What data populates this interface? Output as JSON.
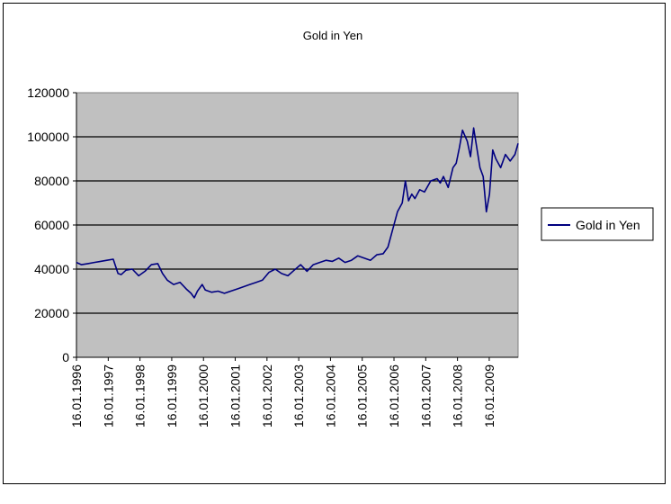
{
  "chart_data": {
    "type": "line",
    "title": "Gold in Yen",
    "xlabel": "",
    "ylabel": "",
    "ylim": [
      0,
      120000
    ],
    "y_ticks": [
      0,
      20000,
      40000,
      60000,
      80000,
      100000,
      120000
    ],
    "y_tick_labels": [
      "0",
      "20000",
      "40000",
      "60000",
      "80000",
      "100000",
      "120000"
    ],
    "x_tick_labels": [
      "16.01.1996",
      "16.01.1997",
      "16.01.1998",
      "16.01.1999",
      "16.01.2000",
      "16.01.2001",
      "16.01.2002",
      "16.01.2003",
      "16.01.2004",
      "16.01.2005",
      "16.01.2006",
      "16.01.2007",
      "16.01.2008",
      "16.01.2009"
    ],
    "x_range": [
      1996.04,
      2009.95
    ],
    "grid": "horizontal",
    "legend_position": "right",
    "colors": {
      "series": "#000080",
      "plot_bg": "#c0c0c0"
    },
    "series": [
      {
        "name": "Gold in Yen",
        "x": [
          1996.04,
          1996.2,
          1996.4,
          1996.6,
          1996.8,
          1997.0,
          1997.2,
          1997.35,
          1997.45,
          1997.6,
          1997.8,
          1998.0,
          1998.2,
          1998.4,
          1998.6,
          1998.75,
          1998.9,
          1999.1,
          1999.3,
          1999.5,
          1999.65,
          1999.75,
          1999.85,
          2000.0,
          2000.1,
          2000.3,
          2000.5,
          2000.7,
          2000.9,
          2001.1,
          2001.3,
          2001.5,
          2001.7,
          2001.9,
          2002.1,
          2002.3,
          2002.5,
          2002.7,
          2002.9,
          2003.1,
          2003.3,
          2003.5,
          2003.7,
          2003.9,
          2004.1,
          2004.3,
          2004.5,
          2004.7,
          2004.9,
          2005.1,
          2005.3,
          2005.5,
          2005.7,
          2005.85,
          2006.0,
          2006.15,
          2006.3,
          2006.4,
          2006.5,
          2006.6,
          2006.7,
          2006.85,
          2007.0,
          2007.2,
          2007.4,
          2007.5,
          2007.6,
          2007.75,
          2007.9,
          2008.0,
          2008.1,
          2008.2,
          2008.35,
          2008.45,
          2008.55,
          2008.65,
          2008.75,
          2008.85,
          2008.95,
          2009.05,
          2009.15,
          2009.25,
          2009.4,
          2009.55,
          2009.7,
          2009.85,
          2009.95
        ],
        "values": [
          43000,
          42000,
          42500,
          43000,
          43500,
          44000,
          44500,
          38000,
          37500,
          39500,
          40000,
          37000,
          39000,
          42000,
          42500,
          38000,
          35000,
          33000,
          34000,
          31000,
          29000,
          27000,
          30000,
          33000,
          30500,
          29500,
          30000,
          29000,
          30000,
          31000,
          32000,
          33000,
          34000,
          35000,
          38500,
          40000,
          38000,
          37000,
          39500,
          42000,
          39000,
          42000,
          43000,
          44000,
          43500,
          45000,
          43000,
          44000,
          46000,
          45000,
          44000,
          46500,
          47000,
          50000,
          58000,
          66000,
          70000,
          80000,
          71000,
          74000,
          72000,
          76000,
          75000,
          80000,
          81000,
          79000,
          82000,
          77000,
          86000,
          88000,
          95000,
          103000,
          98000,
          91000,
          104000,
          95000,
          86000,
          82000,
          66000,
          74000,
          94000,
          90000,
          86000,
          92000,
          89000,
          92000,
          97000
        ]
      }
    ]
  }
}
